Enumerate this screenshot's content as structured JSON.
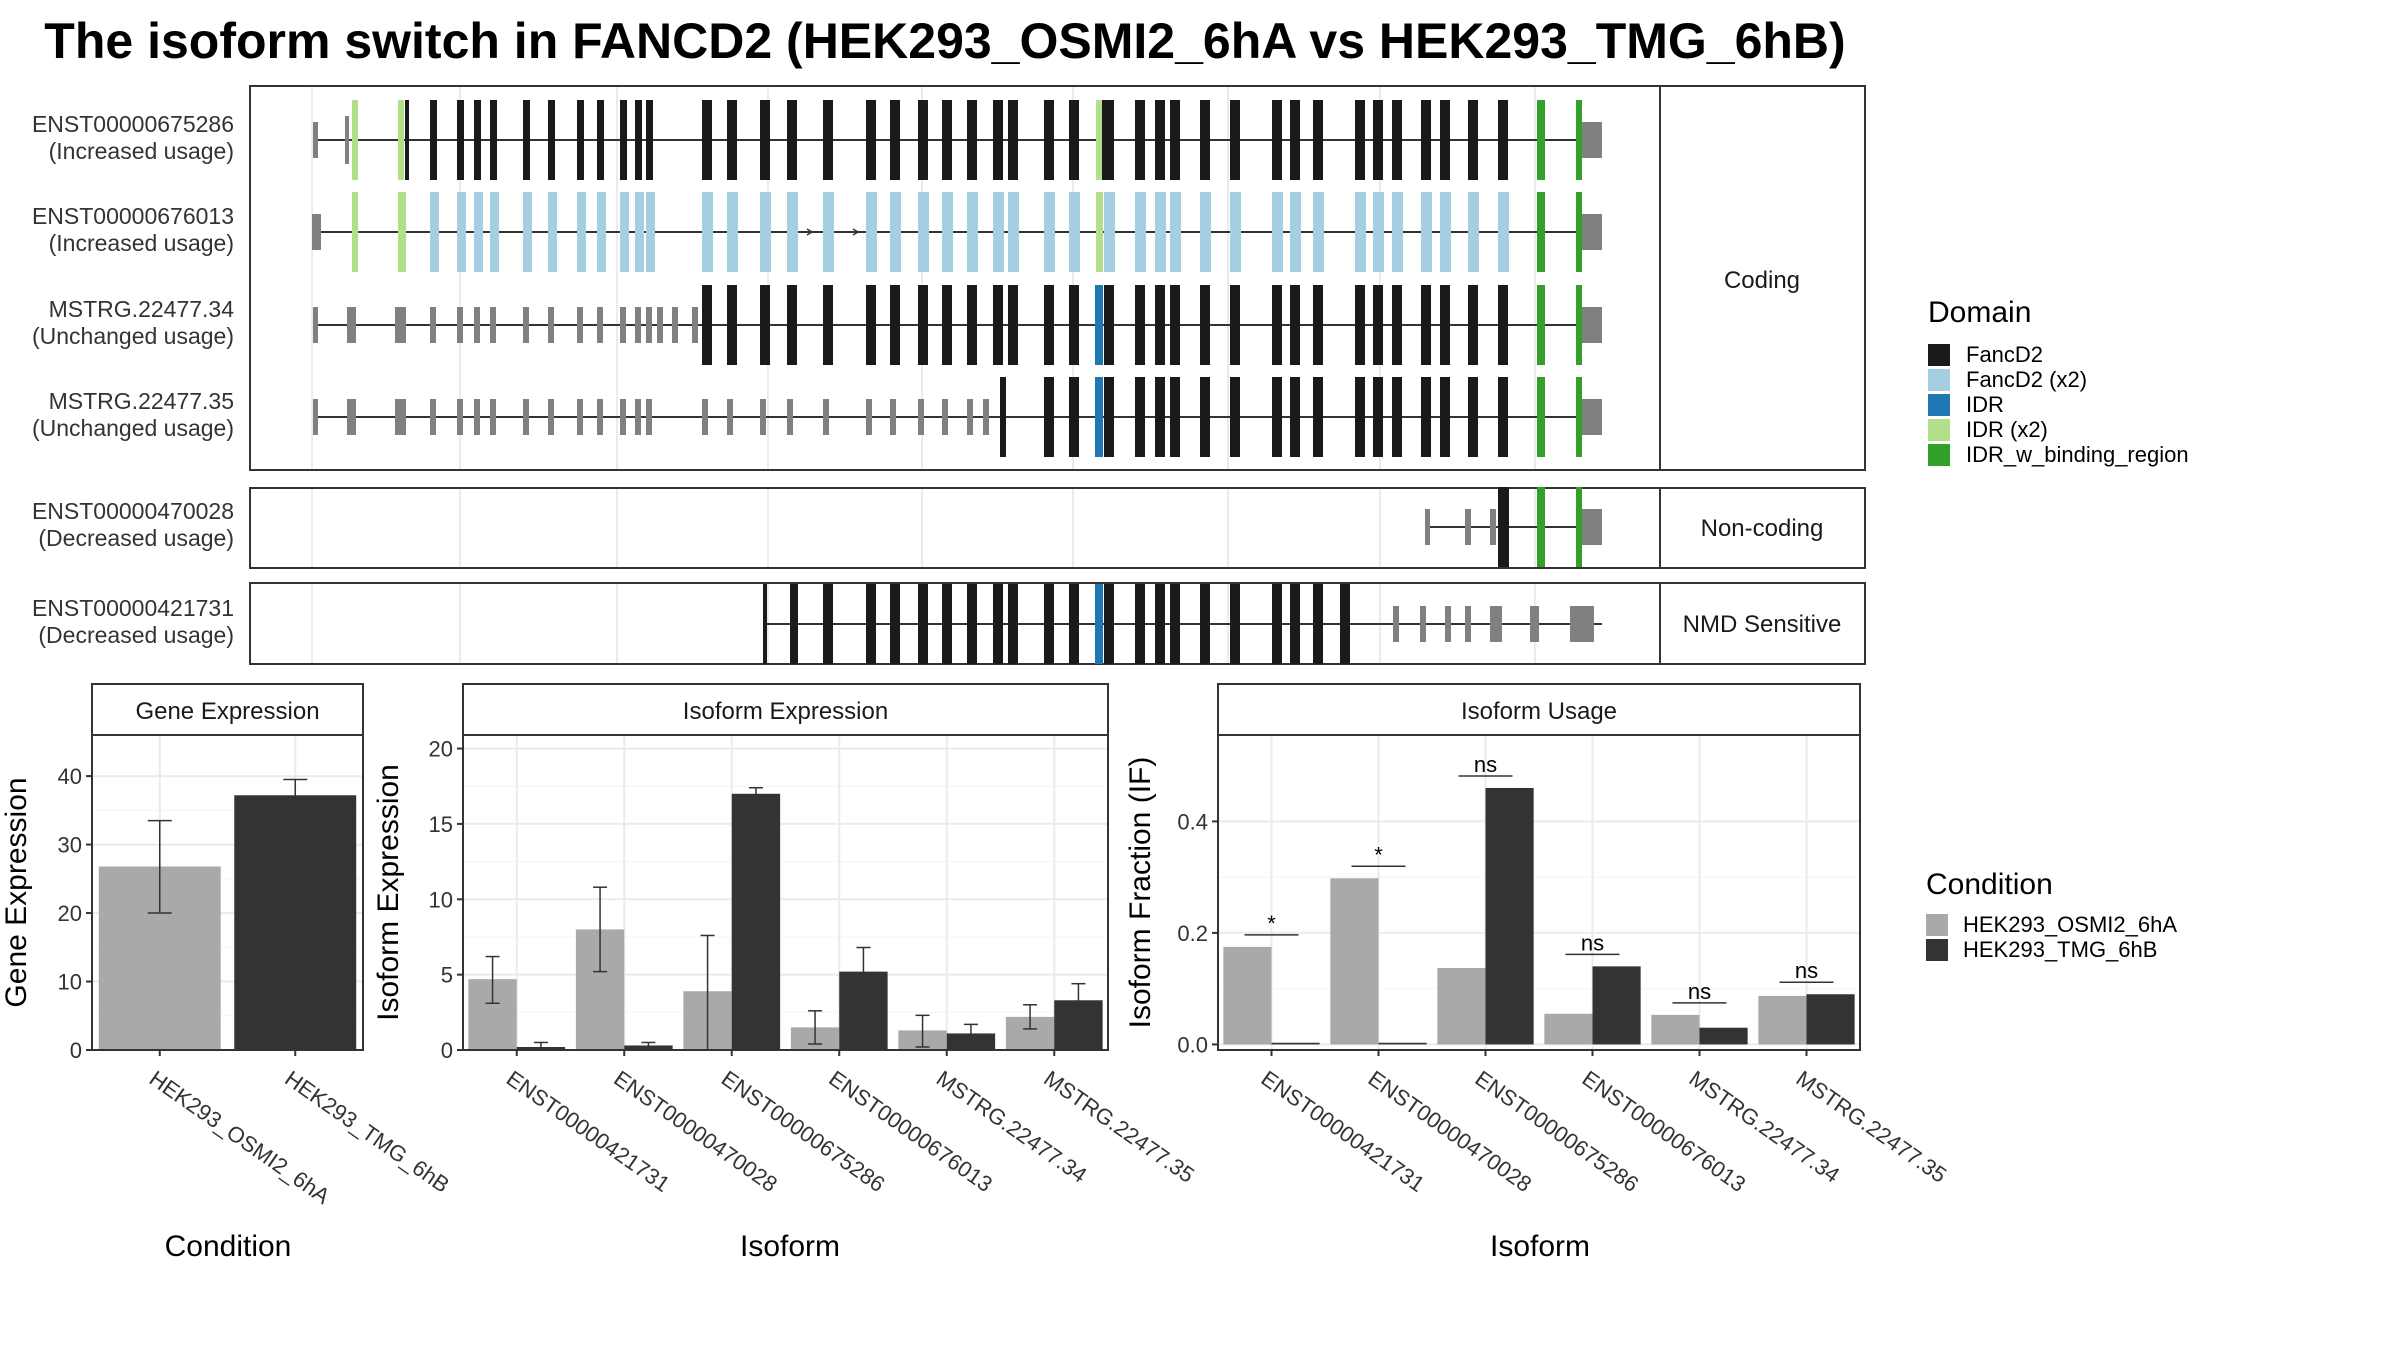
{
  "title": "The isoform switch in FANCD2 (HEK293_OSMI2_6hA vs HEK293_TMG_6hB)",
  "colors": {
    "FancD2": "#1a1a1a",
    "FancD2 (x2)": "#a6cee3",
    "IDR": "#1f78b4",
    "IDR (x2)": "#b2df8a",
    "IDR_w_binding_region": "#33a02c",
    "noncoding": "#808080",
    "cond1": "#a9a9a9",
    "cond2": "#333333"
  },
  "transcripts": [
    {
      "id": "ENST00000675286",
      "usage": "(Increased usage)",
      "group": "Coding"
    },
    {
      "id": "ENST00000676013",
      "usage": "(Increased usage)",
      "group": "Coding"
    },
    {
      "id": "MSTRG.22477.34",
      "usage": "(Unchanged usage)",
      "group": "Coding"
    },
    {
      "id": "MSTRG.22477.35",
      "usage": "(Unchanged usage)",
      "group": "Coding"
    },
    {
      "id": "ENST00000470028",
      "usage": "(Decreased usage)",
      "group": "Non-coding"
    },
    {
      "id": "ENST00000421731",
      "usage": "(Decreased usage)",
      "group": "NMD Sensitive"
    }
  ],
  "facets": [
    "Coding",
    "Non-coding",
    "NMD Sensitive"
  ],
  "legend_domain": {
    "title": "Domain",
    "items": [
      "FancD2",
      "FancD2 (x2)",
      "IDR",
      "IDR (x2)",
      "IDR_w_binding_region"
    ]
  },
  "legend_condition": {
    "title": "Condition",
    "items": [
      "HEK293_OSMI2_6hA",
      "HEK293_TMG_6hB"
    ]
  },
  "chart_data": [
    {
      "type": "bar",
      "title": "Gene Expression",
      "xlabel": "Condition",
      "ylabel": "Gene Expression",
      "ylim": [
        0,
        46
      ],
      "yticks": [
        0,
        10,
        20,
        30,
        40
      ],
      "categories": [
        "HEK293_OSMI2_6hA",
        "HEK293_TMG_6hB"
      ],
      "values": [
        26.8,
        37.2
      ],
      "errors": [
        [
          20.0,
          33.5
        ],
        [
          35.0,
          39.5
        ]
      ]
    },
    {
      "type": "bar",
      "title": "Isoform Expression",
      "xlabel": "Isoform",
      "ylabel": "Isoform Expression",
      "ylim": [
        0,
        20.9
      ],
      "yticks": [
        0,
        5,
        10,
        15,
        20
      ],
      "categories": [
        "ENST00000421731",
        "ENST00000470028",
        "ENST00000675286",
        "ENST00000676013",
        "MSTRG.22477.34",
        "MSTRG.22477.35"
      ],
      "series": [
        {
          "name": "HEK293_OSMI2_6hA",
          "values": [
            4.7,
            8.0,
            3.9,
            1.5,
            1.3,
            2.2
          ],
          "errors": [
            [
              3.1,
              6.2
            ],
            [
              5.2,
              10.8
            ],
            [
              0.0,
              7.6
            ],
            [
              0.4,
              2.6
            ],
            [
              0.2,
              2.3
            ],
            [
              1.4,
              3.0
            ]
          ]
        },
        {
          "name": "HEK293_TMG_6hB",
          "values": [
            0.2,
            0.3,
            17.0,
            5.2,
            1.1,
            3.3
          ],
          "errors": [
            [
              0.0,
              0.5
            ],
            [
              0.1,
              0.5
            ],
            [
              16.5,
              17.4
            ],
            [
              3.7,
              6.8
            ],
            [
              0.4,
              1.7
            ],
            [
              2.2,
              4.4
            ]
          ]
        }
      ]
    },
    {
      "type": "bar",
      "title": "Isoform Usage",
      "xlabel": "Isoform",
      "ylabel": "Isoform Fraction (IF)",
      "ylim": [
        -0.01,
        0.555
      ],
      "yticks": [
        0.0,
        0.2,
        0.4
      ],
      "ytick_labels": [
        "0.0",
        "0.2",
        "0.4"
      ],
      "categories": [
        "ENST00000421731",
        "ENST00000470028",
        "ENST00000675286",
        "ENST00000676013",
        "MSTRG.22477.34",
        "MSTRG.22477.35"
      ],
      "series": [
        {
          "name": "HEK293_OSMI2_6hA",
          "values": [
            0.175,
            0.298,
            0.137,
            0.055,
            0.053,
            0.087
          ]
        },
        {
          "name": "HEK293_TMG_6hB",
          "values": [
            0.003,
            0.003,
            0.46,
            0.14,
            0.03,
            0.09
          ]
        }
      ],
      "significance": [
        "*",
        "*",
        "ns",
        "ns",
        "ns",
        "ns"
      ]
    }
  ]
}
